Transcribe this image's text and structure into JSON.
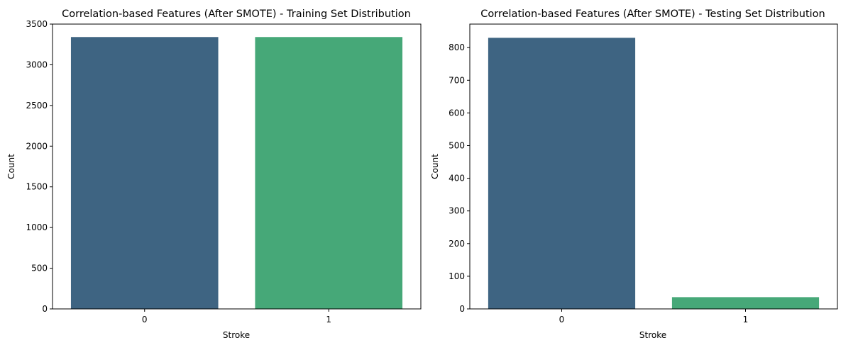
{
  "colors": {
    "class_0": "#3e6482",
    "class_1": "#46a878",
    "axes": "#000000",
    "background": "#ffffff"
  },
  "chart_data": [
    {
      "type": "bar",
      "title": "Correlation-based Features (After SMOTE) - Training Set Distribution",
      "xlabel": "Stroke",
      "ylabel": "Count",
      "categories": [
        "0",
        "1"
      ],
      "values": [
        3341,
        3341
      ],
      "bar_colors": [
        "#3e6482",
        "#46a878"
      ],
      "ylim": [
        0,
        3500
      ],
      "yticks": [
        0,
        500,
        1000,
        1500,
        2000,
        2500,
        3000,
        3500
      ],
      "ytick_labels": [
        "0",
        "500",
        "1000",
        "1500",
        "2000",
        "2500",
        "3000",
        "3500"
      ],
      "grid": false,
      "legend": "none"
    },
    {
      "type": "bar",
      "title": "Correlation-based Features (After SMOTE) - Testing Set Distribution",
      "xlabel": "Stroke",
      "ylabel": "Count",
      "categories": [
        "0",
        "1"
      ],
      "values": [
        830,
        36
      ],
      "bar_colors": [
        "#3e6482",
        "#46a878"
      ],
      "ylim": [
        0,
        872
      ],
      "yticks": [
        0,
        100,
        200,
        300,
        400,
        500,
        600,
        700,
        800
      ],
      "ytick_labels": [
        "0",
        "100",
        "200",
        "300",
        "400",
        "500",
        "600",
        "700",
        "800"
      ],
      "grid": false,
      "legend": "none"
    }
  ]
}
